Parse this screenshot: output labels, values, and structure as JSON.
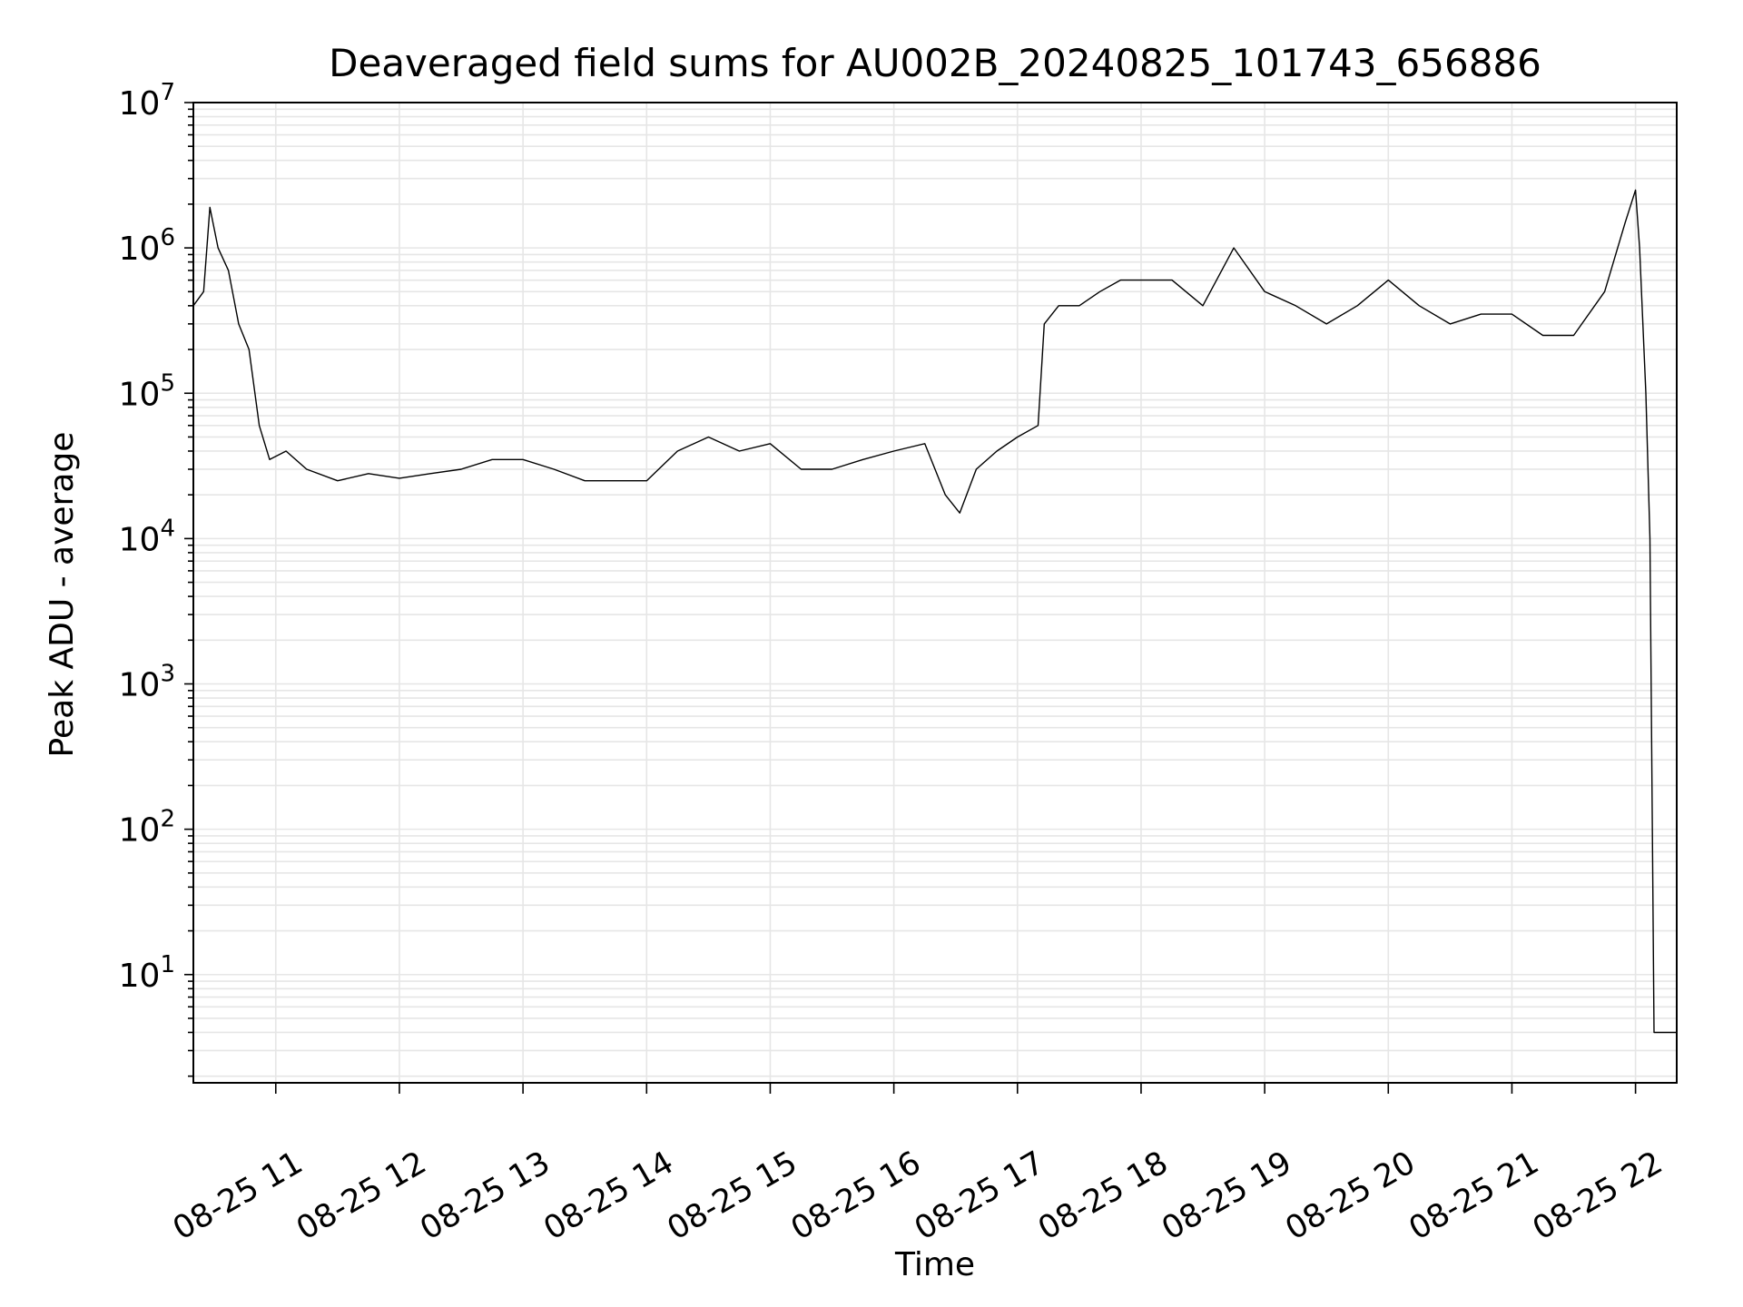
{
  "chart_data": {
    "type": "line",
    "title": "Deaveraged field sums for AU002B_20240825_101743_656886",
    "xlabel": "Time",
    "ylabel": "Peak ADU - average",
    "yscale": "log",
    "ylim": [
      1.8,
      10000000
    ],
    "xlim": [
      "2024-08-25 10:20",
      "2024-08-25 22:20"
    ],
    "grid": true,
    "line_color": "#000000",
    "grid_color": "#e6e6e6",
    "x_ticks": [
      {
        "time": "2024-08-25 11:00",
        "label": "08-25 11"
      },
      {
        "time": "2024-08-25 12:00",
        "label": "08-25 12"
      },
      {
        "time": "2024-08-25 13:00",
        "label": "08-25 13"
      },
      {
        "time": "2024-08-25 14:00",
        "label": "08-25 14"
      },
      {
        "time": "2024-08-25 15:00",
        "label": "08-25 15"
      },
      {
        "time": "2024-08-25 16:00",
        "label": "08-25 16"
      },
      {
        "time": "2024-08-25 17:00",
        "label": "08-25 17"
      },
      {
        "time": "2024-08-25 18:00",
        "label": "08-25 18"
      },
      {
        "time": "2024-08-25 19:00",
        "label": "08-25 19"
      },
      {
        "time": "2024-08-25 20:00",
        "label": "08-25 20"
      },
      {
        "time": "2024-08-25 21:00",
        "label": "08-25 21"
      },
      {
        "time": "2024-08-25 22:00",
        "label": "08-25 22"
      }
    ],
    "y_ticks": [
      {
        "value": 10,
        "base": "10",
        "exp": "1"
      },
      {
        "value": 100,
        "base": "10",
        "exp": "2"
      },
      {
        "value": 1000,
        "base": "10",
        "exp": "3"
      },
      {
        "value": 10000,
        "base": "10",
        "exp": "4"
      },
      {
        "value": 100000,
        "base": "10",
        "exp": "5"
      },
      {
        "value": 1000000,
        "base": "10",
        "exp": "6"
      },
      {
        "value": 10000000,
        "base": "10",
        "exp": "7"
      }
    ],
    "series": [
      {
        "points": [
          [
            "2024-08-25 10:20",
            400000
          ],
          [
            "2024-08-25 10:25",
            500000
          ],
          [
            "2024-08-25 10:28",
            1900000
          ],
          [
            "2024-08-25 10:32",
            1000000
          ],
          [
            "2024-08-25 10:37",
            700000
          ],
          [
            "2024-08-25 10:42",
            300000
          ],
          [
            "2024-08-25 10:47",
            200000
          ],
          [
            "2024-08-25 10:52",
            60000
          ],
          [
            "2024-08-25 10:57",
            35000
          ],
          [
            "2024-08-25 11:05",
            40000
          ],
          [
            "2024-08-25 11:15",
            30000
          ],
          [
            "2024-08-25 11:30",
            25000
          ],
          [
            "2024-08-25 11:45",
            28000
          ],
          [
            "2024-08-25 12:00",
            26000
          ],
          [
            "2024-08-25 12:15",
            28000
          ],
          [
            "2024-08-25 12:30",
            30000
          ],
          [
            "2024-08-25 12:45",
            35000
          ],
          [
            "2024-08-25 13:00",
            35000
          ],
          [
            "2024-08-25 13:15",
            30000
          ],
          [
            "2024-08-25 13:30",
            25000
          ],
          [
            "2024-08-25 13:45",
            25000
          ],
          [
            "2024-08-25 14:00",
            25000
          ],
          [
            "2024-08-25 14:15",
            40000
          ],
          [
            "2024-08-25 14:30",
            50000
          ],
          [
            "2024-08-25 14:45",
            40000
          ],
          [
            "2024-08-25 15:00",
            45000
          ],
          [
            "2024-08-25 15:15",
            30000
          ],
          [
            "2024-08-25 15:30",
            30000
          ],
          [
            "2024-08-25 15:45",
            35000
          ],
          [
            "2024-08-25 16:00",
            40000
          ],
          [
            "2024-08-25 16:15",
            45000
          ],
          [
            "2024-08-25 16:25",
            20000
          ],
          [
            "2024-08-25 16:32",
            15000
          ],
          [
            "2024-08-25 16:40",
            30000
          ],
          [
            "2024-08-25 16:50",
            40000
          ],
          [
            "2024-08-25 17:00",
            50000
          ],
          [
            "2024-08-25 17:10",
            60000
          ],
          [
            "2024-08-25 17:13",
            300000
          ],
          [
            "2024-08-25 17:20",
            400000
          ],
          [
            "2024-08-25 17:30",
            400000
          ],
          [
            "2024-08-25 17:40",
            500000
          ],
          [
            "2024-08-25 17:50",
            600000
          ],
          [
            "2024-08-25 18:00",
            600000
          ],
          [
            "2024-08-25 18:15",
            600000
          ],
          [
            "2024-08-25 18:30",
            400000
          ],
          [
            "2024-08-25 18:45",
            1000000
          ],
          [
            "2024-08-25 19:00",
            500000
          ],
          [
            "2024-08-25 19:15",
            400000
          ],
          [
            "2024-08-25 19:30",
            300000
          ],
          [
            "2024-08-25 19:45",
            400000
          ],
          [
            "2024-08-25 20:00",
            600000
          ],
          [
            "2024-08-25 20:15",
            400000
          ],
          [
            "2024-08-25 20:30",
            300000
          ],
          [
            "2024-08-25 20:45",
            350000
          ],
          [
            "2024-08-25 21:00",
            350000
          ],
          [
            "2024-08-25 21:15",
            250000
          ],
          [
            "2024-08-25 21:30",
            250000
          ],
          [
            "2024-08-25 21:45",
            500000
          ],
          [
            "2024-08-25 21:55",
            1500000
          ],
          [
            "2024-08-25 22:00",
            2500000
          ],
          [
            "2024-08-25 22:02",
            1000000
          ],
          [
            "2024-08-25 22:05",
            100000
          ],
          [
            "2024-08-25 22:07",
            10000
          ],
          [
            "2024-08-25 22:09",
            4
          ],
          [
            "2024-08-25 22:20",
            4
          ]
        ]
      }
    ]
  }
}
